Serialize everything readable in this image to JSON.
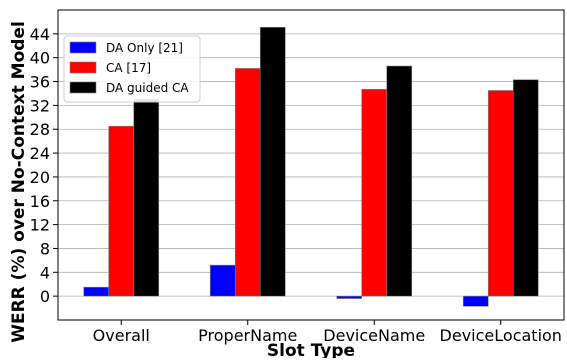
{
  "chart_data": {
    "type": "bar",
    "xlabel": "Slot Type",
    "ylabel": "WERR (%) over No-Context Model",
    "categories": [
      "Overall",
      "ProperName",
      "DeviceName",
      "DeviceLocation"
    ],
    "series": [
      {
        "name": "DA Only [21]",
        "color": "#0000ff",
        "values": [
          1.5,
          5.2,
          -0.4,
          -1.7
        ]
      },
      {
        "name": "CA [17]",
        "color": "#ff0000",
        "values": [
          28.5,
          38.2,
          34.7,
          34.5
        ]
      },
      {
        "name": "DA guided CA",
        "color": "#000000",
        "values": [
          33.1,
          45.1,
          38.6,
          36.3
        ]
      }
    ],
    "yticks": [
      0,
      4,
      8,
      12,
      16,
      20,
      24,
      28,
      32,
      36,
      40,
      44
    ],
    "ylim": [
      -4,
      48
    ],
    "grid": "horizontal",
    "legend_position": "top-left"
  }
}
